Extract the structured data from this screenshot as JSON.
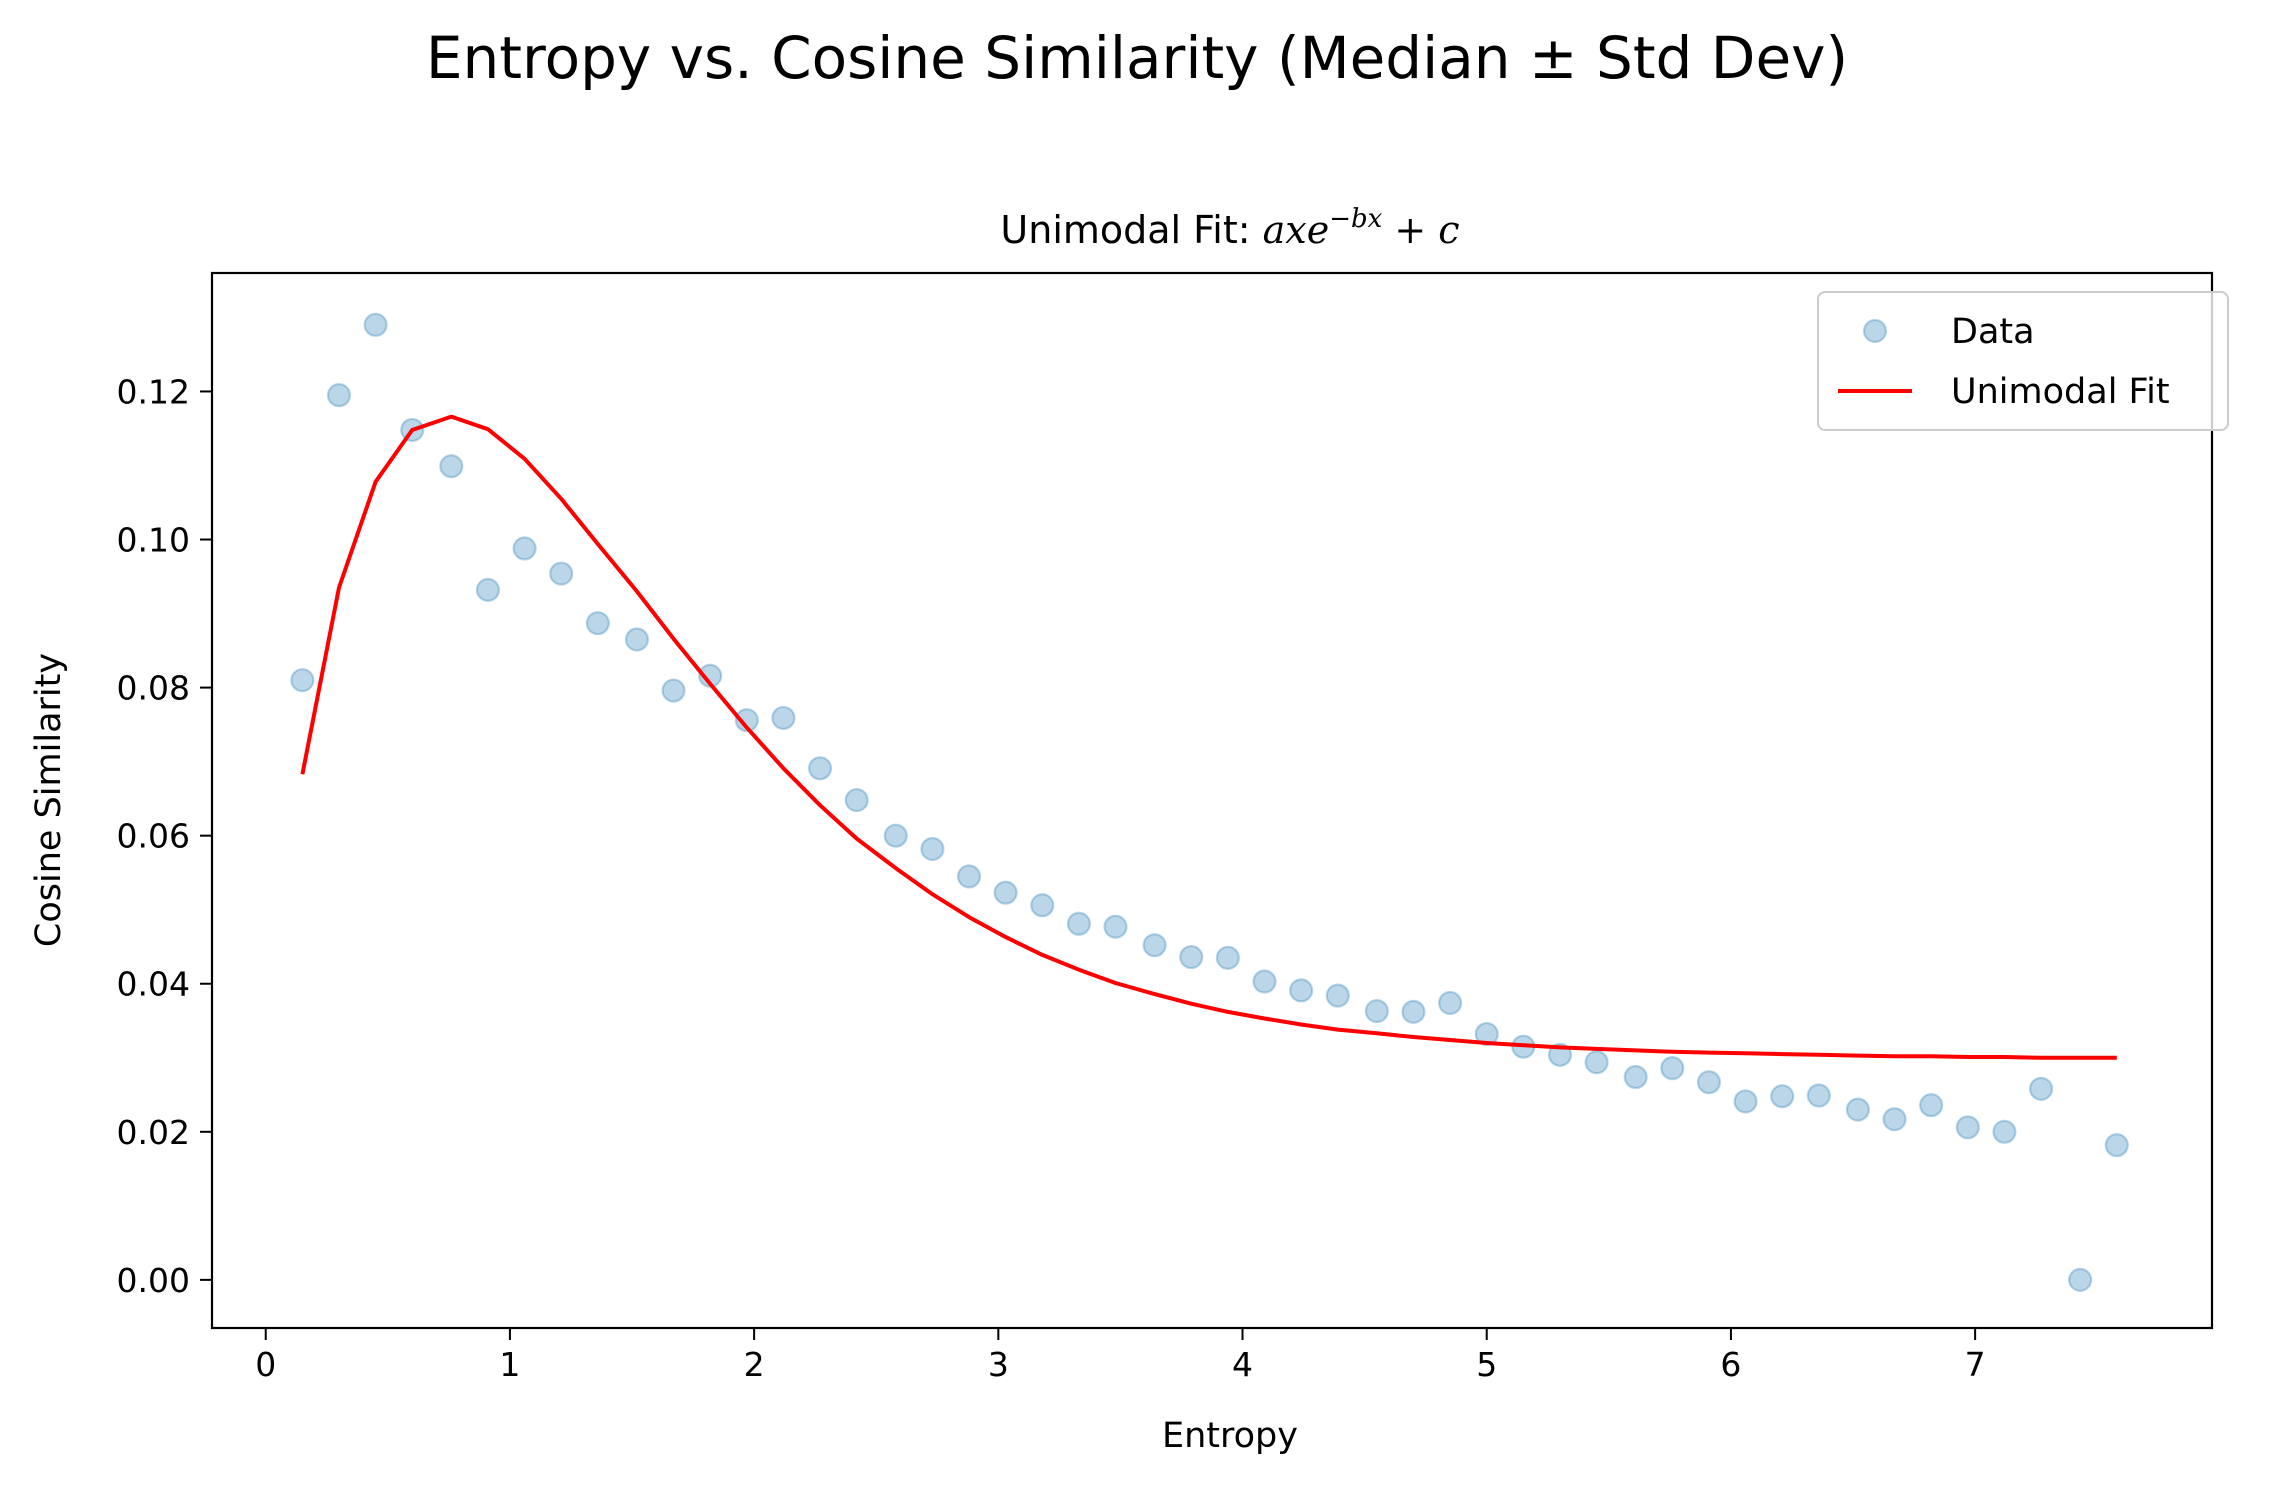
{
  "chart_data": {
    "type": "scatter",
    "suptitle": "Entropy vs. Cosine Similarity (Median ± Std Dev)",
    "title_prefix": "Unimodal Fit: ",
    "title_formula_base": "axe",
    "title_formula_exp": "−bx",
    "title_formula_tail": " + c",
    "xlabel": "Entropy",
    "ylabel": "Cosine Similarity",
    "xlim": [
      -0.22,
      7.97
    ],
    "ylim": [
      -0.0065,
      0.136
    ],
    "xticks": [
      0,
      1,
      2,
      3,
      4,
      5,
      6,
      7
    ],
    "xtick_labels": [
      "0",
      "1",
      "2",
      "3",
      "4",
      "5",
      "6",
      "7"
    ],
    "yticks": [
      0.0,
      0.02,
      0.04,
      0.06,
      0.08,
      0.1,
      0.12
    ],
    "ytick_labels": [
      "0.00",
      "0.02",
      "0.04",
      "0.06",
      "0.08",
      "0.10",
      "0.12"
    ],
    "legend_position": "upper right",
    "grid": false,
    "colors": {
      "data": "#1f77b4",
      "fit": "#ff0000"
    },
    "series": [
      {
        "name": "Data",
        "kind": "scatter",
        "x": [
          0.15,
          0.3,
          0.45,
          0.6,
          0.76,
          0.91,
          1.06,
          1.21,
          1.36,
          1.52,
          1.67,
          1.82,
          1.97,
          2.12,
          2.27,
          2.42,
          2.58,
          2.73,
          2.88,
          3.03,
          3.18,
          3.33,
          3.48,
          3.64,
          3.79,
          3.94,
          4.09,
          4.24,
          4.39,
          4.55,
          4.7,
          4.85,
          5.0,
          5.15,
          5.3,
          5.45,
          5.61,
          5.76,
          5.91,
          6.06,
          6.21,
          6.36,
          6.52,
          6.67,
          6.82,
          6.97,
          7.12,
          7.27,
          7.43,
          7.58
        ],
        "y": [
          0.081,
          0.1195,
          0.129,
          0.1148,
          0.1099,
          0.0932,
          0.0988,
          0.0954,
          0.0887,
          0.0865,
          0.0796,
          0.0816,
          0.0756,
          0.0759,
          0.0691,
          0.0648,
          0.06,
          0.0582,
          0.0545,
          0.0523,
          0.0506,
          0.0481,
          0.0477,
          0.0452,
          0.0436,
          0.0435,
          0.0403,
          0.0391,
          0.0384,
          0.0363,
          0.0362,
          0.0374,
          0.0332,
          0.0315,
          0.0304,
          0.0294,
          0.0274,
          0.0286,
          0.0267,
          0.0241,
          0.0248,
          0.0249,
          0.023,
          0.0217,
          0.0236,
          0.0206,
          0.02,
          0.0258,
          0.0,
          0.0182
        ]
      },
      {
        "name": "Unimodal Fit",
        "kind": "line",
        "x": [
          0.15,
          0.3,
          0.45,
          0.6,
          0.76,
          0.91,
          1.06,
          1.21,
          1.36,
          1.52,
          1.67,
          1.82,
          1.97,
          2.12,
          2.27,
          2.42,
          2.58,
          2.73,
          2.88,
          3.03,
          3.18,
          3.33,
          3.48,
          3.64,
          3.79,
          3.94,
          4.09,
          4.24,
          4.39,
          4.55,
          4.7,
          4.85,
          5.0,
          5.15,
          5.3,
          5.45,
          5.61,
          5.76,
          5.91,
          6.06,
          6.21,
          6.36,
          6.52,
          6.67,
          6.82,
          6.97,
          7.12,
          7.27,
          7.43,
          7.58
        ],
        "y": [
          0.0683,
          0.0935,
          0.1078,
          0.1148,
          0.1166,
          0.1149,
          0.1109,
          0.1055,
          0.0994,
          0.093,
          0.0866,
          0.0805,
          0.0746,
          0.0691,
          0.0641,
          0.0596,
          0.0556,
          0.0521,
          0.049,
          0.0463,
          0.0439,
          0.0419,
          0.0401,
          0.0386,
          0.0373,
          0.0362,
          0.0353,
          0.0345,
          0.0338,
          0.0333,
          0.0328,
          0.0324,
          0.032,
          0.0317,
          0.0314,
          0.0312,
          0.031,
          0.0308,
          0.0307,
          0.0306,
          0.0305,
          0.0304,
          0.0303,
          0.0302,
          0.0302,
          0.0301,
          0.0301,
          0.03,
          0.03,
          0.03
        ]
      }
    ]
  }
}
